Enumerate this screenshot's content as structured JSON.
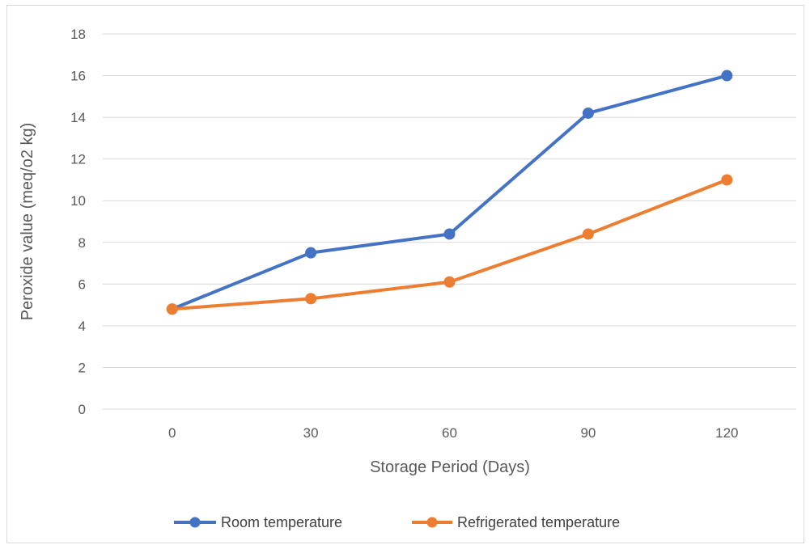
{
  "chart_data": {
    "type": "line",
    "title": "",
    "xlabel": "Storage Period (Days)",
    "ylabel": "Peroxide value (meq/o2 kg)",
    "categories": [
      "0",
      "30",
      "60",
      "90",
      "120"
    ],
    "ylim": [
      0,
      18
    ],
    "yticks": [
      "0",
      "2",
      "4",
      "6",
      "8",
      "10",
      "12",
      "14",
      "16",
      "18"
    ],
    "grid": true,
    "legend_position": "bottom",
    "series": [
      {
        "name": "Room temperature",
        "color": "#4472C4",
        "values": [
          4.8,
          7.5,
          8.4,
          14.2,
          16.0
        ]
      },
      {
        "name": "Refrigerated temperature",
        "color": "#ED7D31",
        "values": [
          4.8,
          5.3,
          6.1,
          8.4,
          11.0
        ]
      }
    ]
  }
}
